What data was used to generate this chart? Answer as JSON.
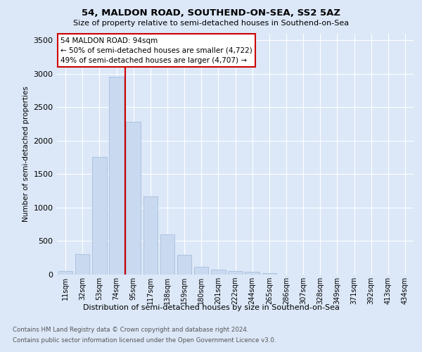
{
  "title": "54, MALDON ROAD, SOUTHEND-ON-SEA, SS2 5AZ",
  "subtitle": "Size of property relative to semi-detached houses in Southend-on-Sea",
  "xlabel": "Distribution of semi-detached houses by size in Southend-on-Sea",
  "ylabel": "Number of semi-detached properties",
  "categories": [
    "11sqm",
    "32sqm",
    "53sqm",
    "74sqm",
    "95sqm",
    "117sqm",
    "138sqm",
    "159sqm",
    "180sqm",
    "201sqm",
    "222sqm",
    "244sqm",
    "265sqm",
    "286sqm",
    "307sqm",
    "328sqm",
    "349sqm",
    "371sqm",
    "392sqm",
    "413sqm",
    "434sqm"
  ],
  "bar_values": [
    50,
    310,
    1760,
    2950,
    2280,
    1170,
    600,
    290,
    120,
    75,
    55,
    40,
    20,
    0,
    0,
    0,
    0,
    0,
    0,
    0,
    0
  ],
  "bar_color": "#c9d9ef",
  "bar_edge_color": "#a8bedc",
  "vline_x_index": 4,
  "vline_color": "#cc0000",
  "annotation_title": "54 MALDON ROAD: 94sqm",
  "annotation_line1": "← 50% of semi-detached houses are smaller (4,722)",
  "annotation_line2": "49% of semi-detached houses are larger (4,707) →",
  "annotation_box_facecolor": "#ffffff",
  "annotation_box_edgecolor": "#cc0000",
  "ylim": [
    0,
    3600
  ],
  "yticks": [
    0,
    500,
    1000,
    1500,
    2000,
    2500,
    3000,
    3500
  ],
  "footnote1": "Contains HM Land Registry data © Crown copyright and database right 2024.",
  "footnote2": "Contains public sector information licensed under the Open Government Licence v3.0.",
  "bg_color": "#dce8f8",
  "plot_bg_color": "#dce8f8",
  "grid_color": "#ffffff",
  "footnote_color": "#555555"
}
